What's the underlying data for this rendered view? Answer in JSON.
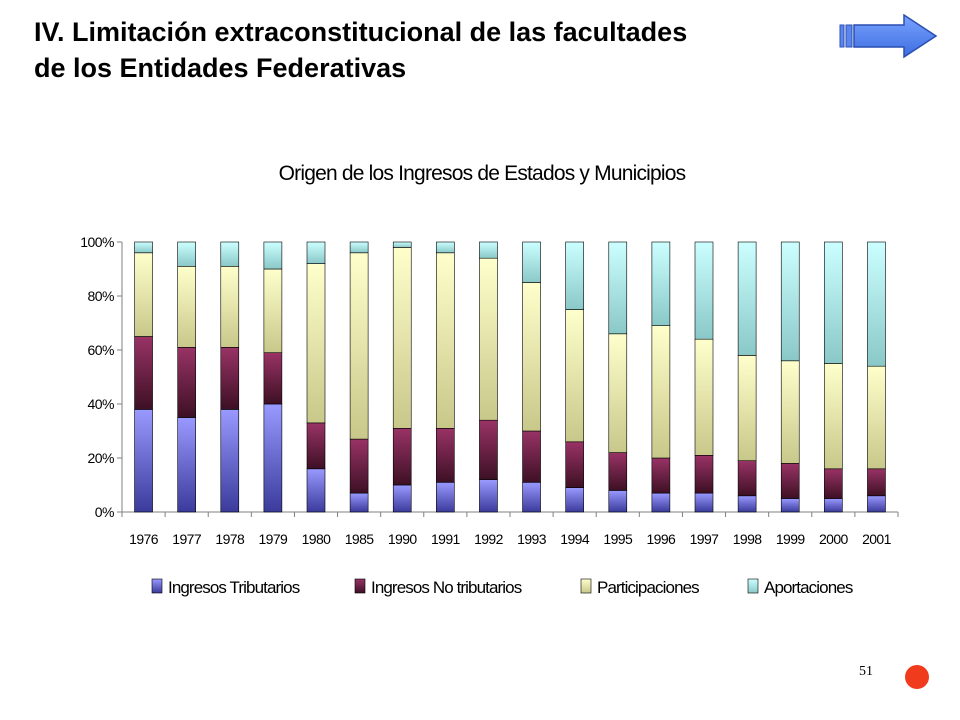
{
  "slide": {
    "title_line1": "IV. Limitación extraconstitucional de las facultades",
    "title_line2": "de los Entidades Federativas",
    "page_number": "51",
    "next_icon": "right-arrow-icon",
    "bullet_icon": "red-dot-icon"
  },
  "chart_data": {
    "type": "bar",
    "stacked": true,
    "percent": true,
    "title": "Origen de los Ingresos de Estados y Municipios",
    "categories": [
      "1976",
      "1977",
      "1978",
      "1979",
      "1980",
      "1985",
      "1990",
      "1991",
      "1992",
      "1993",
      "1994",
      "1995",
      "1996",
      "1997",
      "1998",
      "1999",
      "2000",
      "2001"
    ],
    "yticks": [
      "0%",
      "20%",
      "40%",
      "60%",
      "80%",
      "100%"
    ],
    "ylim": [
      0,
      100
    ],
    "legend_position": "bottom",
    "series": [
      {
        "name": "Ingresos Tributarios",
        "color": "#9999ff",
        "shade": "#3b3b9c",
        "values": [
          38,
          35,
          38,
          40,
          16,
          7,
          10,
          11,
          12,
          11,
          9,
          8,
          7,
          7,
          6,
          5,
          5,
          6
        ]
      },
      {
        "name": "Ingresos No tributarios",
        "color": "#993366",
        "shade": "#3d1024",
        "values": [
          27,
          26,
          23,
          19,
          17,
          20,
          21,
          20,
          22,
          19,
          17,
          14,
          13,
          14,
          13,
          13,
          11,
          10
        ]
      },
      {
        "name": "Participaciones",
        "color": "#ffffcc",
        "shade": "#c8c88a",
        "values": [
          31,
          30,
          30,
          31,
          59,
          69,
          67,
          65,
          60,
          55,
          49,
          44,
          49,
          43,
          39,
          38,
          39,
          38
        ]
      },
      {
        "name": "Aportaciones",
        "color": "#ccffff",
        "shade": "#8ac8c8",
        "values": [
          4,
          9,
          9,
          10,
          8,
          4,
          2,
          4,
          6,
          15,
          25,
          34,
          31,
          36,
          42,
          44,
          45,
          46
        ]
      }
    ]
  }
}
